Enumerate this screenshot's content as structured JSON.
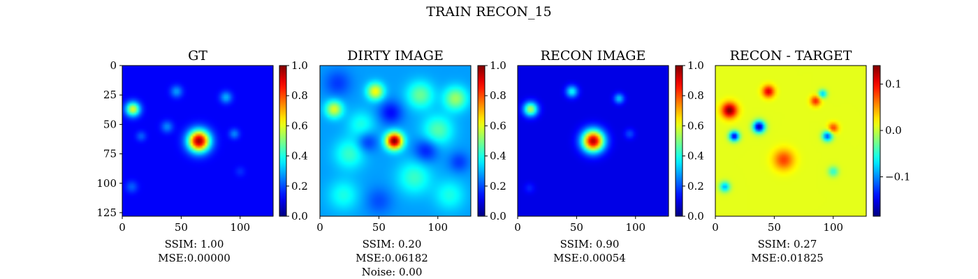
{
  "figure": {
    "suptitle": "TRAIN RECON_15"
  },
  "colormap": "jet",
  "chart_data": [
    {
      "type": "heatmap",
      "title": "GT",
      "xlim": [
        0,
        128
      ],
      "ylim": [
        128,
        0
      ],
      "xticks": [
        "0",
        "50",
        "100"
      ],
      "yticks": [
        "0",
        "25",
        "50",
        "75",
        "100",
        "125"
      ],
      "colorbar": {
        "range": [
          0.0,
          1.0
        ],
        "ticks": [
          "0.0",
          "0.2",
          "0.4",
          "0.6",
          "0.8",
          "1.0"
        ]
      },
      "caption": [
        "SSIM: 1.00",
        "MSE:0.00000"
      ],
      "background": 0.12,
      "blobs": [
        {
          "x": 65,
          "y": 64,
          "amp": 0.85,
          "sigma": 6.5
        },
        {
          "x": 9,
          "y": 37,
          "amp": 0.48,
          "sigma": 4.2
        },
        {
          "x": 46,
          "y": 22,
          "amp": 0.16,
          "sigma": 3.5
        },
        {
          "x": 88,
          "y": 27,
          "amp": 0.18,
          "sigma": 3.5
        },
        {
          "x": 38,
          "y": 52,
          "amp": 0.14,
          "sigma": 3.5
        },
        {
          "x": 95,
          "y": 58,
          "amp": 0.14,
          "sigma": 3.0
        },
        {
          "x": 16,
          "y": 60,
          "amp": 0.1,
          "sigma": 3.0
        },
        {
          "x": 8,
          "y": 103,
          "amp": 0.1,
          "sigma": 3.5
        },
        {
          "x": 100,
          "y": 90,
          "amp": 0.05,
          "sigma": 3.0
        }
      ]
    },
    {
      "type": "heatmap",
      "title": "DIRTY IMAGE",
      "xlim": [
        0,
        128
      ],
      "ylim": [
        128,
        0
      ],
      "xticks": [
        "0",
        "50",
        "100"
      ],
      "yticks": [],
      "colorbar": {
        "range": [
          0.0,
          1.0
        ],
        "ticks": [
          "0.0",
          "0.2",
          "0.4",
          "0.6",
          "0.8",
          "1.0"
        ]
      },
      "caption": [
        "SSIM: 0.20",
        "MSE:0.06182",
        "Noise: 0.00"
      ],
      "background": 0.28,
      "blobs": [
        {
          "x": 63,
          "y": 64,
          "amp": 0.72,
          "sigma": 5.0
        },
        {
          "x": 47,
          "y": 22,
          "amp": 0.35,
          "sigma": 5.0
        },
        {
          "x": 12,
          "y": 37,
          "amp": 0.32,
          "sigma": 5.0
        },
        {
          "x": 115,
          "y": 28,
          "amp": 0.25,
          "sigma": 7.0
        },
        {
          "x": 85,
          "y": 25,
          "amp": 0.2,
          "sigma": 8.0
        },
        {
          "x": 100,
          "y": 55,
          "amp": 0.18,
          "sigma": 9.0
        },
        {
          "x": 25,
          "y": 75,
          "amp": 0.15,
          "sigma": 9.0
        },
        {
          "x": 80,
          "y": 95,
          "amp": 0.15,
          "sigma": 10.0
        },
        {
          "x": 20,
          "y": 110,
          "amp": 0.12,
          "sigma": 9.0
        },
        {
          "x": 110,
          "y": 110,
          "amp": 0.12,
          "sigma": 9.0
        },
        {
          "x": 35,
          "y": 50,
          "amp": 0.12,
          "sigma": 8.0
        },
        {
          "x": 60,
          "y": 40,
          "amp": -0.15,
          "sigma": 7.0
        },
        {
          "x": 40,
          "y": 65,
          "amp": -0.12,
          "sigma": 6.0
        },
        {
          "x": 90,
          "y": 72,
          "amp": -0.14,
          "sigma": 7.0
        },
        {
          "x": 15,
          "y": 15,
          "amp": -0.1,
          "sigma": 8.0
        },
        {
          "x": 118,
          "y": 82,
          "amp": -0.1,
          "sigma": 6.0
        },
        {
          "x": 50,
          "y": 115,
          "amp": -0.08,
          "sigma": 8.0
        }
      ]
    },
    {
      "type": "heatmap",
      "title": "RECON IMAGE",
      "xlim": [
        0,
        128
      ],
      "ylim": [
        128,
        0
      ],
      "xticks": [
        "0",
        "50",
        "100"
      ],
      "yticks": [],
      "colorbar": {
        "range": [
          0.0,
          1.0
        ],
        "ticks": [
          "0.0",
          "0.2",
          "0.4",
          "0.6",
          "0.8",
          "1.0"
        ]
      },
      "caption": [
        "SSIM: 0.90",
        "MSE:0.00054"
      ],
      "background": 0.1,
      "blobs": [
        {
          "x": 64,
          "y": 64,
          "amp": 0.85,
          "sigma": 6.5
        },
        {
          "x": 11,
          "y": 37,
          "amp": 0.45,
          "sigma": 4.2
        },
        {
          "x": 46,
          "y": 22,
          "amp": 0.28,
          "sigma": 3.5
        },
        {
          "x": 86,
          "y": 28,
          "amp": 0.22,
          "sigma": 3.0
        },
        {
          "x": 95,
          "y": 58,
          "amp": 0.1,
          "sigma": 3.0
        },
        {
          "x": 10,
          "y": 104,
          "amp": 0.06,
          "sigma": 3.0
        }
      ]
    },
    {
      "type": "heatmap",
      "title": "RECON - TARGET",
      "xlim": [
        0,
        128
      ],
      "ylim": [
        128,
        0
      ],
      "xticks": [
        "0",
        "50",
        "100"
      ],
      "yticks": [],
      "colorbar": {
        "range": [
          -0.185,
          0.14
        ],
        "ticks": [
          "0.1",
          "0.0",
          "−0.1"
        ],
        "tick_values": [
          0.1,
          0.0,
          -0.1
        ]
      },
      "caption": [
        "SSIM: 0.27",
        "MSE:0.01825"
      ],
      "background": 0.01,
      "blobs": [
        {
          "x": 12,
          "y": 38,
          "amp": 0.13,
          "sigma": 4.5
        },
        {
          "x": 45,
          "y": 22,
          "amp": 0.1,
          "sigma": 3.5
        },
        {
          "x": 58,
          "y": 80,
          "amp": 0.07,
          "sigma": 6.0
        },
        {
          "x": 85,
          "y": 30,
          "amp": 0.08,
          "sigma": 3.0
        },
        {
          "x": 100,
          "y": 53,
          "amp": 0.07,
          "sigma": 3.0
        },
        {
          "x": 37,
          "y": 52,
          "amp": -0.18,
          "sigma": 3.5
        },
        {
          "x": 16,
          "y": 60,
          "amp": -0.16,
          "sigma": 3.0
        },
        {
          "x": 95,
          "y": 60,
          "amp": -0.13,
          "sigma": 3.0
        },
        {
          "x": 8,
          "y": 103,
          "amp": -0.1,
          "sigma": 3.0
        },
        {
          "x": 100,
          "y": 90,
          "amp": -0.06,
          "sigma": 3.0
        },
        {
          "x": 91,
          "y": 24,
          "amp": -0.09,
          "sigma": 2.5
        }
      ]
    }
  ]
}
